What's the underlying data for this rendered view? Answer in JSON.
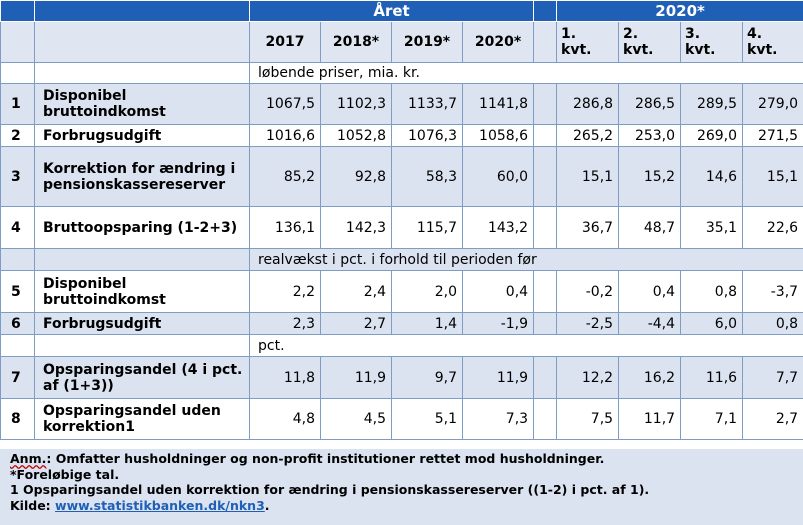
{
  "header": {
    "aaret": "Året",
    "year2020": "2020*"
  },
  "columns": {
    "years": [
      "2017",
      "2018*",
      "2019*",
      "2020*"
    ],
    "quarters": [
      [
        "1.",
        "kvt."
      ],
      [
        "2.",
        "kvt."
      ],
      [
        "3.",
        "kvt."
      ],
      [
        "4.",
        "kvt."
      ]
    ]
  },
  "units": {
    "u1": "løbende priser, mia. kr.",
    "u2": "realvækst i pct. i forhold til perioden før",
    "u3": "pct."
  },
  "rows": [
    {
      "n": "1",
      "label": "Disponibel bruttoindkomst",
      "y": [
        "1067,5",
        "1102,3",
        "1133,7",
        "1141,8"
      ],
      "q": [
        "286,8",
        "286,5",
        "289,5",
        "279,0"
      ]
    },
    {
      "n": "2",
      "label": "Forbrugsudgift",
      "y": [
        "1016,6",
        "1052,8",
        "1076,3",
        "1058,6"
      ],
      "q": [
        "265,2",
        "253,0",
        "269,0",
        "271,5"
      ]
    },
    {
      "n": "3",
      "label": "Korrektion for ændring i pensionskassereserver",
      "y": [
        "85,2",
        "92,8",
        "58,3",
        "60,0"
      ],
      "q": [
        "15,1",
        "15,2",
        "14,6",
        "15,1"
      ]
    },
    {
      "n": "4",
      "label": "Bruttoopsparing (1-2+3)",
      "y": [
        "136,1",
        "142,3",
        "115,7",
        "143,2"
      ],
      "q": [
        "36,7",
        "48,7",
        "35,1",
        "22,6"
      ]
    },
    {
      "n": "5",
      "label": "Disponibel bruttoindkomst",
      "y": [
        "2,2",
        "2,4",
        "2,0",
        "0,4"
      ],
      "q": [
        "-0,2",
        "0,4",
        "0,8",
        "-3,7"
      ]
    },
    {
      "n": "6",
      "label": "Forbrugsudgift",
      "y": [
        "2,3",
        "2,7",
        "1,4",
        "-1,9"
      ],
      "q": [
        "-2,5",
        "-4,4",
        "6,0",
        "0,8"
      ]
    },
    {
      "n": "7",
      "label": "Opsparingsandel (4 i pct. af (1+3))",
      "y": [
        "11,8",
        "11,9",
        "9,7",
        "11,9"
      ],
      "q": [
        "12,2",
        "16,2",
        "11,6",
        "7,7"
      ]
    },
    {
      "n": "8",
      "label": "Opsparingsandel uden korrektion1",
      "y": [
        "4,8",
        "4,5",
        "5,1",
        "7,3"
      ],
      "q": [
        "7,5",
        "11,7",
        "7,1",
        "2,7"
      ]
    }
  ],
  "notes": {
    "anm_label": "Anm.",
    "anm_text": ": Omfatter husholdninger og non-profit institutioner rettet mod husholdninger.",
    "prelim": "*Foreløbige tal.",
    "footnote1": "1 Opsparingsandel uden korrektion for ændring i pensionskassereserver ((1-2) i pct. af 1).",
    "kilde_label": "Kilde: ",
    "kilde_link": "www.statistikbanken.dk/nkn3",
    "kilde_end": "."
  }
}
